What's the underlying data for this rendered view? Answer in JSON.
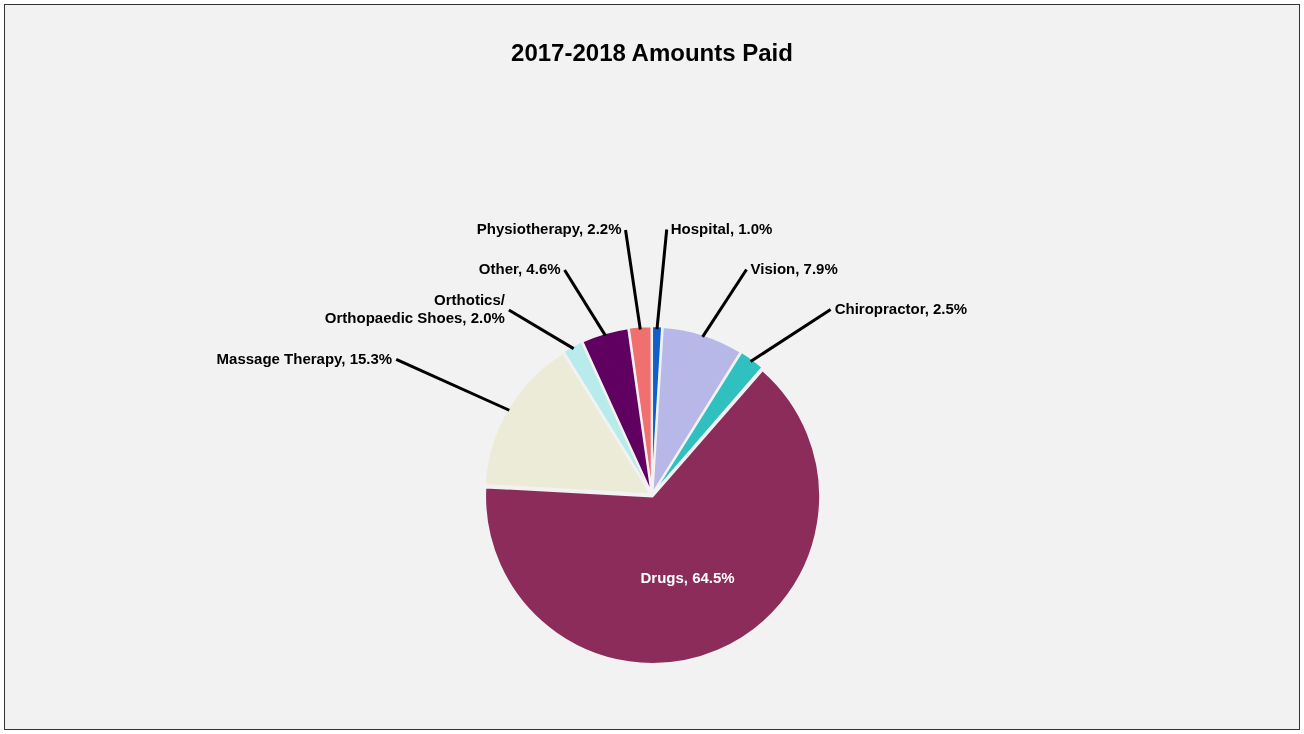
{
  "chart_data": {
    "type": "pie",
    "title": "2017-2018 Amounts Paid",
    "categories": [
      "Physiotherapy",
      "Hospital",
      "Vision",
      "Chiropractor",
      "Drugs",
      "Massage Therapy",
      "Orthotics/ Orthopaedic Shoes",
      "Other"
    ],
    "values": [
      2.2,
      1.0,
      7.9,
      2.5,
      64.5,
      15.3,
      2.0,
      4.6
    ],
    "value_labels": [
      "2.2%",
      "1.0%",
      "7.9%",
      "2.5%",
      "64.5%",
      "15.3%",
      "2.0%",
      "4.6%"
    ],
    "colors": [
      "#f07070",
      "#1060c8",
      "#b8b8e8",
      "#30c0c0",
      "#8b2c5a",
      "#ecebd8",
      "#b8ecec",
      "#600060"
    ],
    "legend": false
  }
}
